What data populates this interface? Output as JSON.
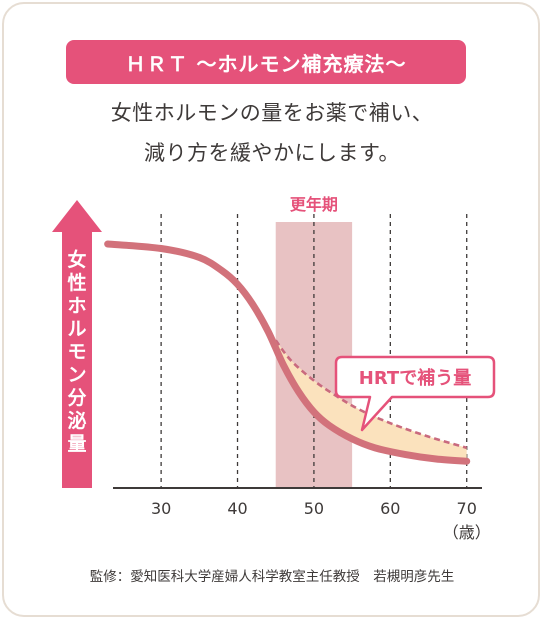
{
  "header": {
    "title": "ＨＲＴ ～ホルモン補充療法～",
    "subtitle_line1": "女性ホルモンの量をお薬で補い、",
    "subtitle_line2": "減り方を緩やかにします。"
  },
  "footer": {
    "credit": "監修：愛知医科大学産婦人科学教室主任教授　若槻明彦先生"
  },
  "colors": {
    "accent_pink": "#e5527a",
    "curve": "#d2727b",
    "band": "#e8c2c3",
    "fill": "#fbe2bd",
    "text": "#3e3a39"
  },
  "chart_data": {
    "type": "line",
    "title": "",
    "ylabel": "女性ホルモン分泌量",
    "xlabel": "（歳）",
    "xlim": [
      22,
      72
    ],
    "ylim": [
      0,
      100
    ],
    "x_ticks": [
      30,
      40,
      50,
      60,
      70
    ],
    "x_tick_labels": [
      "30",
      "40",
      "50",
      "60",
      "70"
    ],
    "gridlines_x": [
      30,
      40,
      50,
      60,
      70
    ],
    "grid": "vertical-dashed",
    "band": {
      "label": "更年期",
      "from": 45,
      "to": 55
    },
    "callout": {
      "label": "HRTで補う量"
    },
    "series": [
      {
        "style": "solid",
        "x": [
          23,
          30,
          35,
          38,
          40,
          42,
          44,
          46,
          48,
          50,
          52,
          55,
          58,
          62,
          66,
          70
        ],
        "values": [
          100,
          98,
          94,
          88,
          82,
          73,
          61,
          46,
          34,
          25,
          19,
          13,
          9,
          6,
          4,
          3
        ]
      },
      {
        "style": "dashed",
        "x": [
          45,
          47,
          50,
          53,
          56,
          60,
          65,
          70
        ],
        "values": [
          57,
          48,
          39,
          32,
          26,
          20,
          14,
          9
        ]
      }
    ]
  }
}
